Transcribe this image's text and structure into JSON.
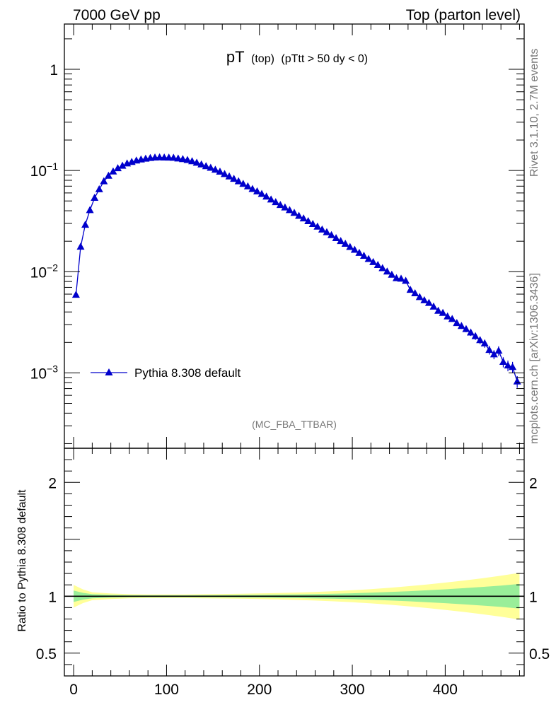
{
  "header": {
    "left": "7000 GeV pp",
    "right": "Top (parton level)"
  },
  "side_labels": {
    "top": "Rivet 3.1.10,  2.7M events",
    "bottom": "mcplots.cern.ch [arXiv:1306.3436]"
  },
  "plot_title": {
    "main": "pT",
    "sub1": "(top)",
    "sub2": "(pTtt > 50 dy < 0)"
  },
  "analysis_id": "(MC_FBA_TTBAR)",
  "colors": {
    "series": "#0000cc",
    "band_inner": "#99ee99",
    "band_outer": "#ffff99",
    "ref_line": "#000000",
    "grey_text": "#777777"
  },
  "chart_data": [
    {
      "type": "line",
      "scale": "log",
      "xlim": [
        -10,
        485
      ],
      "ylim": [
        0.00018,
        2.8
      ],
      "y_tick_labels": [
        {
          "v": 1,
          "base": "1",
          "exp": ""
        },
        {
          "v": 0.1,
          "base": "10",
          "exp": "−1"
        },
        {
          "v": 0.01,
          "base": "10",
          "exp": "−2"
        },
        {
          "v": 0.001,
          "base": "10",
          "exp": "−3"
        }
      ],
      "legend": {
        "label": "Pythia 8.308 default",
        "placement": "bottom-left"
      },
      "series": [
        {
          "name": "Pythia 8.308 default",
          "x": [
            2.5,
            7.5,
            12.5,
            17.5,
            22.5,
            27.5,
            32.5,
            37.5,
            42.5,
            47.5,
            52.5,
            57.5,
            62.5,
            67.5,
            72.5,
            77.5,
            82.5,
            87.5,
            92.5,
            97.5,
            102.5,
            107.5,
            112.5,
            117.5,
            122.5,
            127.5,
            132.5,
            137.5,
            142.5,
            147.5,
            152.5,
            157.5,
            162.5,
            167.5,
            172.5,
            177.5,
            182.5,
            187.5,
            192.5,
            197.5,
            202.5,
            207.5,
            212.5,
            217.5,
            222.5,
            227.5,
            232.5,
            237.5,
            242.5,
            247.5,
            252.5,
            257.5,
            262.5,
            267.5,
            272.5,
            277.5,
            282.5,
            287.5,
            292.5,
            297.5,
            302.5,
            307.5,
            312.5,
            317.5,
            322.5,
            327.5,
            332.5,
            337.5,
            342.5,
            347.5,
            352.5,
            357.5,
            362.5,
            367.5,
            372.5,
            377.5,
            382.5,
            387.5,
            392.5,
            397.5,
            402.5,
            407.5,
            412.5,
            417.5,
            422.5,
            427.5,
            432.5,
            437.5,
            442.5,
            447.5,
            452.5,
            457.5,
            462.5,
            467.5,
            472.5,
            477.5
          ],
          "values": [
            0.0059,
            0.0176,
            0.029,
            0.0405,
            0.0535,
            0.065,
            0.078,
            0.0885,
            0.0975,
            0.105,
            0.111,
            0.117,
            0.121,
            0.125,
            0.128,
            0.1305,
            0.1325,
            0.134,
            0.1345,
            0.134,
            0.1335,
            0.133,
            0.131,
            0.129,
            0.1265,
            0.123,
            0.119,
            0.1145,
            0.11,
            0.106,
            0.1015,
            0.097,
            0.092,
            0.087,
            0.0825,
            0.078,
            0.0735,
            0.0695,
            0.0655,
            0.062,
            0.0585,
            0.055,
            0.0515,
            0.0485,
            0.0455,
            0.043,
            0.0405,
            0.038,
            0.0355,
            0.0335,
            0.0315,
            0.0295,
            0.0278,
            0.026,
            0.0245,
            0.0229,
            0.0214,
            0.02,
            0.0188,
            0.0175,
            0.0164,
            0.0153,
            0.0143,
            0.0133,
            0.0124,
            0.0116,
            0.0108,
            0.01,
            0.0093,
            0.0086,
            0.0085,
            0.0081,
            0.0066,
            0.0061,
            0.0056,
            0.0052,
            0.0049,
            0.0045,
            0.0041,
            0.0039,
            0.0036,
            0.0034,
            0.0031,
            0.0029,
            0.0027,
            0.0025,
            0.0023,
            0.0021,
            0.00195,
            0.00168,
            0.00152,
            0.00165,
            0.00128,
            0.00118,
            0.00114,
            0.00082
          ]
        }
      ]
    },
    {
      "type": "area",
      "xlabel": "",
      "ylabel": "Ratio to Pythia 8.308 default",
      "xlim": [
        -10,
        485
      ],
      "ylim": [
        0.3,
        2.3
      ],
      "x_ticks": [
        0,
        100,
        200,
        300,
        400
      ],
      "y_ticks": [
        0.5,
        1,
        2
      ],
      "y_tick_labels": [
        "0.5",
        "1",
        "2"
      ],
      "reference": 1,
      "band_x": [
        0,
        10,
        20,
        40,
        60,
        80,
        100,
        120,
        140,
        160,
        180,
        200,
        220,
        240,
        260,
        280,
        300,
        320,
        340,
        360,
        380,
        400,
        420,
        440,
        460,
        480
      ],
      "inner_band_halfwidth": [
        0.05,
        0.03,
        0.018,
        0.012,
        0.009,
        0.008,
        0.008,
        0.008,
        0.009,
        0.01,
        0.011,
        0.012,
        0.014,
        0.016,
        0.019,
        0.022,
        0.026,
        0.031,
        0.037,
        0.044,
        0.052,
        0.061,
        0.071,
        0.082,
        0.094,
        0.108
      ],
      "outer_band_halfwidth": [
        0.1,
        0.06,
        0.035,
        0.024,
        0.018,
        0.016,
        0.016,
        0.016,
        0.018,
        0.02,
        0.022,
        0.025,
        0.028,
        0.032,
        0.038,
        0.045,
        0.053,
        0.063,
        0.074,
        0.088,
        0.103,
        0.12,
        0.138,
        0.158,
        0.18,
        0.205
      ]
    }
  ]
}
